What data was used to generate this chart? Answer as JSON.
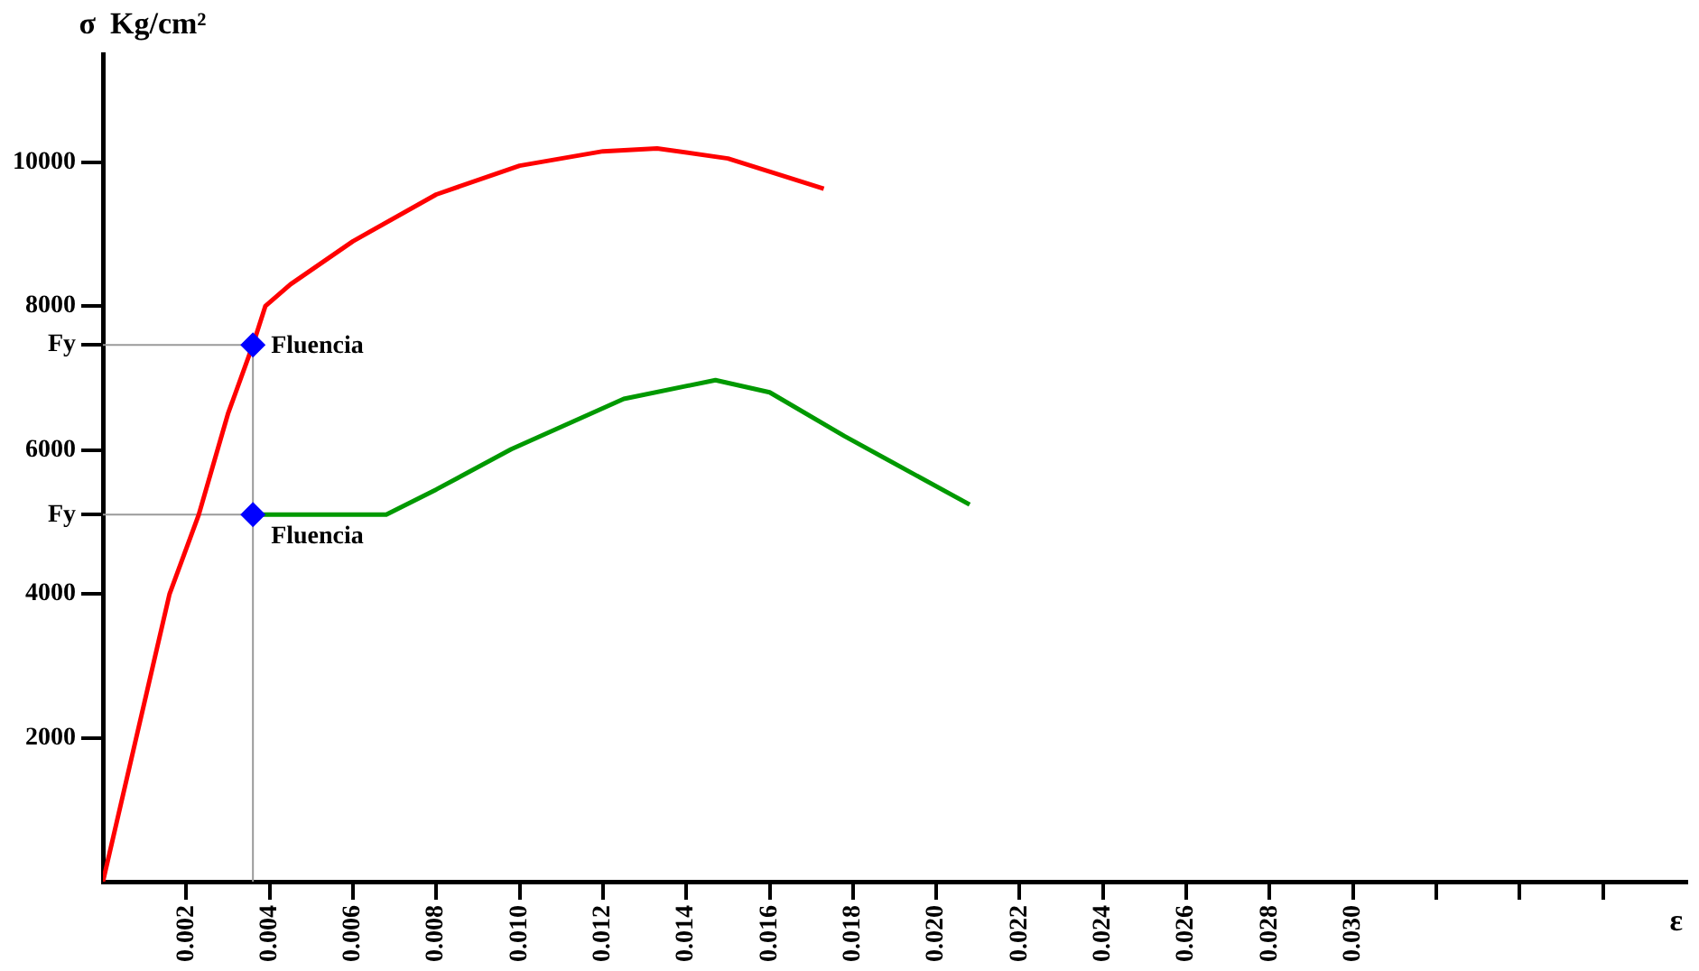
{
  "chart_data": {
    "type": "line",
    "xlabel": "ε",
    "ylabel": "σ Kg/cm²",
    "xlim": [
      0,
      0.038
    ],
    "ylim": [
      0,
      11500
    ],
    "xticks": [
      0.002,
      0.004,
      0.006,
      0.008,
      {
        "value": 0.01,
        "label": "0.010"
      },
      0.012,
      0.014,
      0.016,
      0.018,
      {
        "value": 0.02,
        "label": "0.020"
      },
      0.022,
      0.024,
      0.026,
      0.028,
      {
        "value": 0.03,
        "label": "0.030"
      },
      {
        "value": 0.032,
        "label": null
      },
      {
        "value": 0.034,
        "label": null
      },
      {
        "value": 0.036,
        "label": null
      }
    ],
    "yticks": [
      2000,
      4000,
      {
        "value": 5100,
        "label": "Fy"
      },
      6000,
      {
        "value": 7460,
        "label": "Fy"
      },
      8000,
      10000
    ],
    "series": [
      {
        "color": "#ff0000",
        "x": [
          0,
          0.0008,
          0.0016,
          0.0023,
          0.003,
          0.0036,
          0.0039,
          0.0045,
          0.006,
          0.008,
          0.01,
          0.012,
          0.0133,
          0.015,
          0.0173
        ],
        "values": [
          0,
          2000,
          4000,
          5100,
          6500,
          7460,
          8000,
          8300,
          8900,
          9550,
          9950,
          10150,
          10190,
          10050,
          9630
        ]
      },
      {
        "color": "#009900",
        "x": [
          0.0036,
          0.0068,
          0.008,
          0.0098,
          0.0125,
          0.0147,
          0.016,
          0.0178,
          0.0208
        ],
        "values": [
          5100,
          5100,
          5450,
          6010,
          6710,
          6970,
          6800,
          6190,
          5240
        ]
      },
      {
        "type": "scatter",
        "color": "#0000ff",
        "marker": "diamond",
        "x": [
          0.0036,
          0.0036
        ],
        "values": [
          7460,
          5100
        ]
      }
    ],
    "ref_lines": [
      {
        "axis": "y",
        "value": 7460,
        "color": "#9a9a9a"
      },
      {
        "axis": "y",
        "value": 5100,
        "color": "#9a9a9a"
      },
      {
        "axis": "x",
        "value": 0.0036,
        "color": "#9a9a9a"
      }
    ],
    "annotations": [
      {
        "text": "Fluencia",
        "x": 0.0036,
        "y": 7460
      },
      {
        "text": "Fluencia",
        "x": 0.0036,
        "y": 5100
      }
    ],
    "legend": false
  }
}
